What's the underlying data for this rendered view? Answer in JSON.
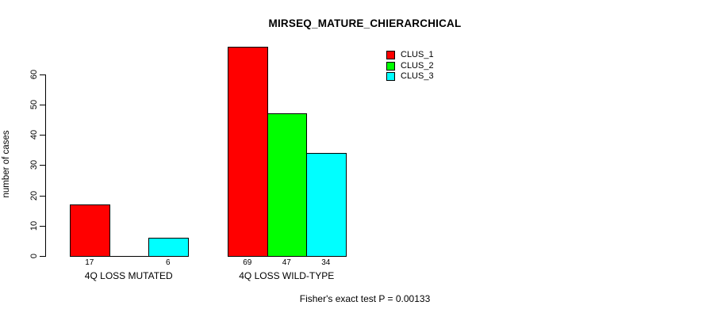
{
  "title": "MIRSEQ_MATURE_CHIERARCHICAL",
  "annotation": "Fisher's exact test P = 0.00133",
  "chart_data": {
    "type": "bar",
    "title": "MIRSEQ_MATURE_CHIERARCHICAL",
    "categories": [
      "4Q LOSS MUTATED",
      "4Q LOSS WILD-TYPE"
    ],
    "series": [
      {
        "name": "CLUS_1",
        "color": "#FF0000",
        "values": [
          17,
          69
        ]
      },
      {
        "name": "CLUS_2",
        "color": "#00FF00",
        "values": [
          0,
          47
        ]
      },
      {
        "name": "CLUS_3",
        "color": "#00FFFF",
        "values": [
          6,
          34
        ]
      }
    ],
    "xlabel": "",
    "ylabel": "number of cases",
    "yticks": [
      0,
      10,
      20,
      30,
      40,
      50,
      60
    ],
    "ylim": [
      0,
      69
    ],
    "grid": false,
    "legend_position": "top-right",
    "value_labels_shown_for_nonzero_bars": true,
    "annotation": "Fisher's exact test P = 0.00133"
  }
}
